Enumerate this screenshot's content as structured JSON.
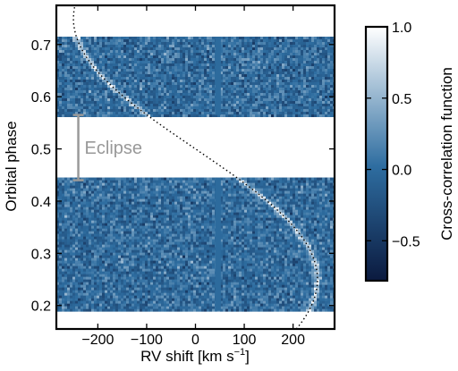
{
  "chart_data": {
    "type": "heatmap",
    "xlabel_main": "RV shift [km s",
    "xlabel_sup": "−1",
    "xlabel_close": "]",
    "ylabel": "Orbital phase",
    "colorbar_label": "Cross-correlation function",
    "xlim": [
      -285,
      285
    ],
    "ylim": [
      0.155,
      0.775
    ],
    "xticks": [
      {
        "value": -200,
        "label": "−200"
      },
      {
        "value": -100,
        "label": "−100"
      },
      {
        "value": 0,
        "label": "0"
      },
      {
        "value": 100,
        "label": "100"
      },
      {
        "value": 200,
        "label": "200"
      }
    ],
    "yticks": [
      {
        "value": 0.2,
        "label": "0.2"
      },
      {
        "value": 0.3,
        "label": "0.3"
      },
      {
        "value": 0.4,
        "label": "0.4"
      },
      {
        "value": 0.5,
        "label": "0.5"
      },
      {
        "value": 0.6,
        "label": "0.6"
      },
      {
        "value": 0.7,
        "label": "0.7"
      }
    ],
    "colorbar": {
      "range": [
        -0.78,
        1.0
      ],
      "ticks": [
        {
          "value": 1.0,
          "label": "1.0"
        },
        {
          "value": 0.5,
          "label": "0.5"
        },
        {
          "value": 0.0,
          "label": "0.0"
        },
        {
          "value": -0.5,
          "label": "−0.5"
        }
      ],
      "colors": [
        "#0b1a3f",
        "#2e6da0",
        "#ffffff"
      ]
    },
    "data_bands": [
      {
        "phase_range": [
          0.19,
          0.445
        ]
      },
      {
        "phase_range": [
          0.565,
          0.715
        ]
      }
    ],
    "masked_rv_range": [
      40,
      52
    ],
    "background_value": 0.0,
    "eclipse": {
      "label": "Eclipse",
      "phase_range": [
        0.44,
        0.565
      ],
      "rv": -240,
      "color": "#999999"
    },
    "planet_trail": {
      "style": "dotted",
      "K_rv": 250,
      "description_phase_points": [
        0.19,
        0.2,
        0.25,
        0.3,
        0.35,
        0.4,
        0.45,
        0.5,
        0.55,
        0.6,
        0.65,
        0.7,
        0.75
      ]
    },
    "grid": false
  }
}
